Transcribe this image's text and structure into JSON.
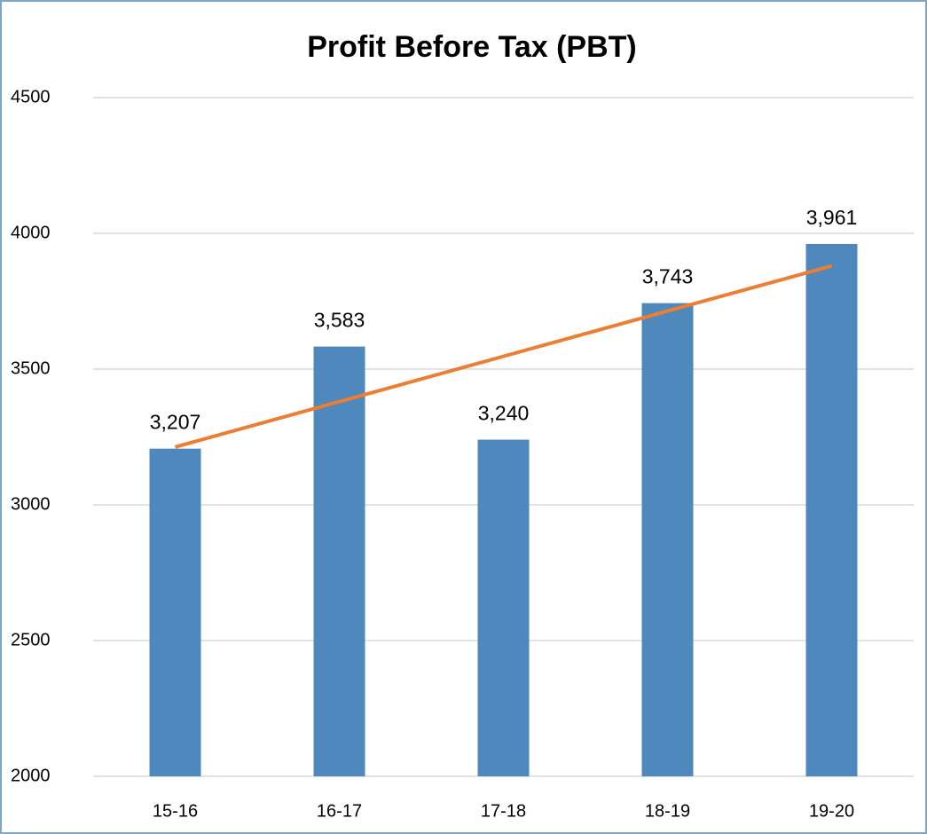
{
  "chart_data": {
    "type": "bar",
    "title": "Profit Before Tax (PBT)",
    "categories": [
      "15-16",
      "16-17",
      "17-18",
      "18-19",
      "19-20"
    ],
    "values": [
      3207,
      3583,
      3240,
      3743,
      3961
    ],
    "value_labels": [
      "3,207",
      "3,583",
      "3,240",
      "3,743",
      "3,961"
    ],
    "color": "#4f88bd",
    "trendline": {
      "color": "#ed7d31",
      "values": [
        3213,
        3380,
        3547,
        3714,
        3880
      ]
    },
    "ylim": [
      2000,
      4500
    ],
    "yticks": [
      2000,
      2500,
      3000,
      3500,
      4000,
      4500
    ],
    "grid": true
  }
}
